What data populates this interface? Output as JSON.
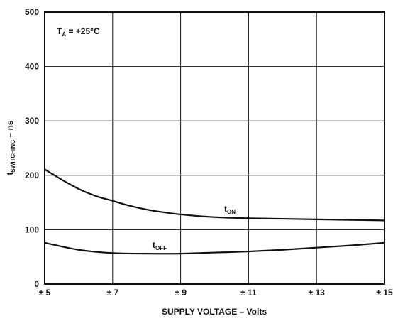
{
  "chart_data": {
    "type": "line",
    "xlabel": "SUPPLY VOLTAGE – Volts",
    "ylabel": {
      "main": "t",
      "sub": "SWITCHING",
      "tail": " – ns"
    },
    "annotation": {
      "main": "T",
      "sub": "A",
      "tail": " = +25°C"
    },
    "x_tick_labels": [
      "± 5",
      "± 7",
      "± 9",
      "± 11",
      "± 13",
      "± 15"
    ],
    "x_tick_values": [
      5,
      7,
      9,
      11,
      13,
      15
    ],
    "y_tick_labels": [
      "0",
      "100",
      "200",
      "300",
      "400",
      "500"
    ],
    "y_tick_values": [
      0,
      100,
      200,
      300,
      400,
      500
    ],
    "xlim": [
      5,
      15
    ],
    "ylim": [
      0,
      500
    ],
    "grid": true,
    "series": [
      {
        "name": {
          "main": "t",
          "sub": "ON"
        },
        "x": [
          5,
          5.5,
          6,
          6.5,
          7,
          7.5,
          8,
          8.5,
          9,
          10,
          11,
          12,
          13,
          14,
          15
        ],
        "y": [
          211,
          192,
          175,
          162,
          153,
          144,
          137,
          132,
          128,
          123,
          121,
          120,
          119,
          118,
          117
        ]
      },
      {
        "name": {
          "main": "t",
          "sub": "OFF"
        },
        "x": [
          5,
          6,
          7,
          8,
          9,
          10,
          11,
          12,
          13,
          14,
          15
        ],
        "y": [
          76,
          63,
          57,
          56,
          56,
          58,
          60,
          63,
          67,
          71,
          76
        ]
      }
    ]
  }
}
